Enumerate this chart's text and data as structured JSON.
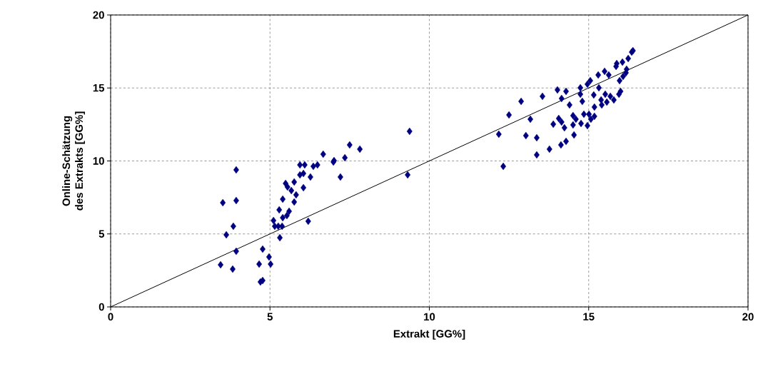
{
  "chart_data": {
    "type": "scatter",
    "xlabel": "Extrakt [GG%]",
    "ylabel": "Online-Schätzung\ndes Extrakts [GG%]",
    "xlim": [
      0,
      20
    ],
    "ylim": [
      0,
      20
    ],
    "xticks": [
      0,
      5,
      10,
      15,
      20
    ],
    "yticks": [
      0,
      5,
      10,
      15,
      20
    ],
    "grid": true,
    "series": [
      {
        "marker": "diamond",
        "color": "#000080",
        "x": [
          3.94,
          3.52,
          3.94,
          3.85,
          3.63,
          3.94,
          3.45,
          3.83,
          4.77,
          4.97,
          4.66,
          5.02,
          4.7,
          4.77,
          5.11,
          5.15,
          5.26,
          5.38,
          5.31,
          5.29,
          5.4,
          5.53,
          5.6,
          5.4,
          5.76,
          5.82,
          5.67,
          5.49,
          5.55,
          5.76,
          6.05,
          5.94,
          6.05,
          5.94,
          6.09,
          6.27,
          6.36,
          6.49,
          6.67,
          6.99,
          7.01,
          7.35,
          7.21,
          7.5,
          7.82,
          6.2,
          9.38,
          9.32,
          12.32,
          12.18,
          12.5,
          12.88,
          13.03,
          13.17,
          13.37,
          13.37,
          13.55,
          13.77,
          13.89,
          14.02,
          14.06,
          14.13,
          14.15,
          14.15,
          14.24,
          14.29,
          14.29,
          14.4,
          14.51,
          14.51,
          14.54,
          14.6,
          14.74,
          14.74,
          14.8,
          14.76,
          14.85,
          14.96,
          14.96,
          15.05,
          15.01,
          15.07,
          15.16,
          15.18,
          15.18,
          15.3,
          15.32,
          15.39,
          15.41,
          15.5,
          15.52,
          15.57,
          15.63,
          15.68,
          15.79,
          15.86,
          15.88,
          15.95,
          16.0,
          15.97,
          16.06,
          16.08,
          16.17,
          16.24,
          16.35,
          16.39,
          16.19
        ],
        "values": [
          9.39,
          7.14,
          7.29,
          5.53,
          4.94,
          3.81,
          2.89,
          2.59,
          3.96,
          3.42,
          2.93,
          2.93,
          1.71,
          1.81,
          5.92,
          5.53,
          5.53,
          5.53,
          4.74,
          6.65,
          6.11,
          6.26,
          6.55,
          7.38,
          7.19,
          7.68,
          7.97,
          8.46,
          8.22,
          8.56,
          8.17,
          9.05,
          9.14,
          9.73,
          9.73,
          8.9,
          9.63,
          9.73,
          10.46,
          9.93,
          10.02,
          10.22,
          8.9,
          11.1,
          10.81,
          5.87,
          12.03,
          9.05,
          9.63,
          11.83,
          13.15,
          14.08,
          11.74,
          12.86,
          11.59,
          10.42,
          14.43,
          10.81,
          12.52,
          14.87,
          12.91,
          11.1,
          12.67,
          14.28,
          12.27,
          14.77,
          11.34,
          13.84,
          13.11,
          12.47,
          11.78,
          12.86,
          15.01,
          14.57,
          14.08,
          12.57,
          13.2,
          12.42,
          15.26,
          15.5,
          13.2,
          12.86,
          14.52,
          13.06,
          13.69,
          15.89,
          15.01,
          14.18,
          13.84,
          16.14,
          14.57,
          14.03,
          15.89,
          14.43,
          14.18,
          16.48,
          16.67,
          14.57,
          14.77,
          15.5,
          16.77,
          15.79,
          16.04,
          17.02,
          17.46,
          17.55,
          16.28
        ]
      },
      {
        "type": "line",
        "color": "#000000",
        "x": [
          0,
          20
        ],
        "values": [
          0,
          20
        ]
      }
    ]
  }
}
